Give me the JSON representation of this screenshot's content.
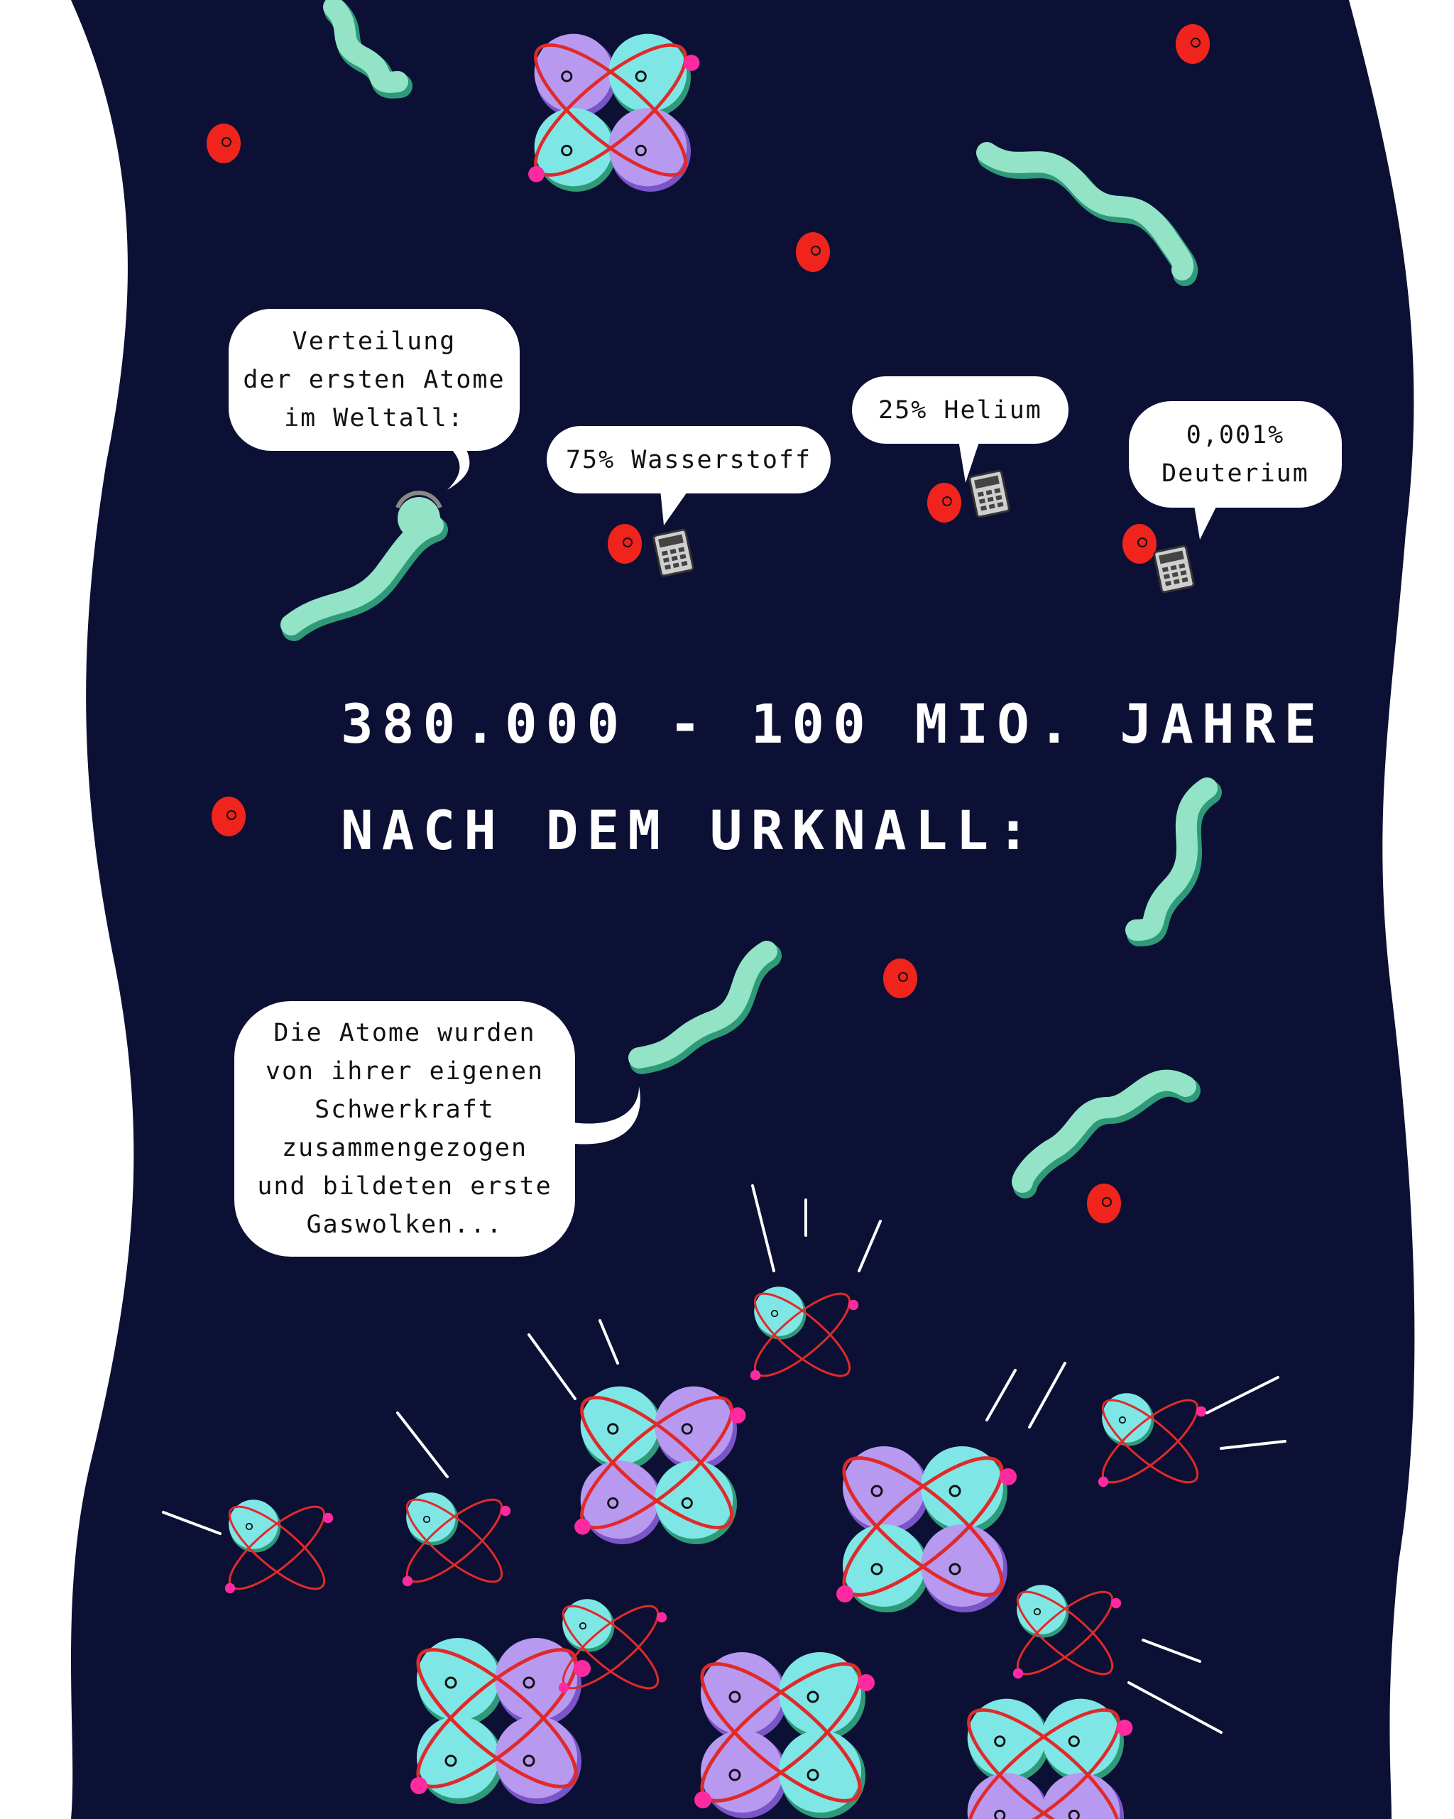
{
  "colors": {
    "background_space": "#0b1034",
    "page_margin": "#ffffff",
    "worm": "#93e3c6",
    "worm_shade": "#2e9a78",
    "electron_red": "#f0241c",
    "proton_purple": "#b79af0",
    "neutron_cyan": "#7fe6e6",
    "orbit_red": "#e02a2a",
    "electron_magenta": "#ff2aa0"
  },
  "heading": {
    "line1": "380.000 - 100 MIO. JAHRE",
    "line2": "NACH DEM URKNALL:"
  },
  "bubbles": {
    "distribution": {
      "lines": [
        "Verteilung",
        "der ersten Atome",
        "im Weltall:"
      ]
    },
    "hydrogen": {
      "text": "75% Wasserstoff"
    },
    "helium": {
      "text": "25% Helium"
    },
    "deuterium": {
      "lines": [
        "0,001%",
        "Deuterium"
      ]
    },
    "gravity": {
      "lines": [
        "Die Atome wurden",
        "von ihrer eigenen",
        "Schwerkraft",
        "zusammengezogen",
        "und bildeten erste",
        "Gaswolken..."
      ]
    }
  },
  "icons": {
    "speaker": "worm-with-headset-icon",
    "calculator": "calculator-icon",
    "electron": "red-electron-icon",
    "atom": "atom-cluster-icon"
  }
}
